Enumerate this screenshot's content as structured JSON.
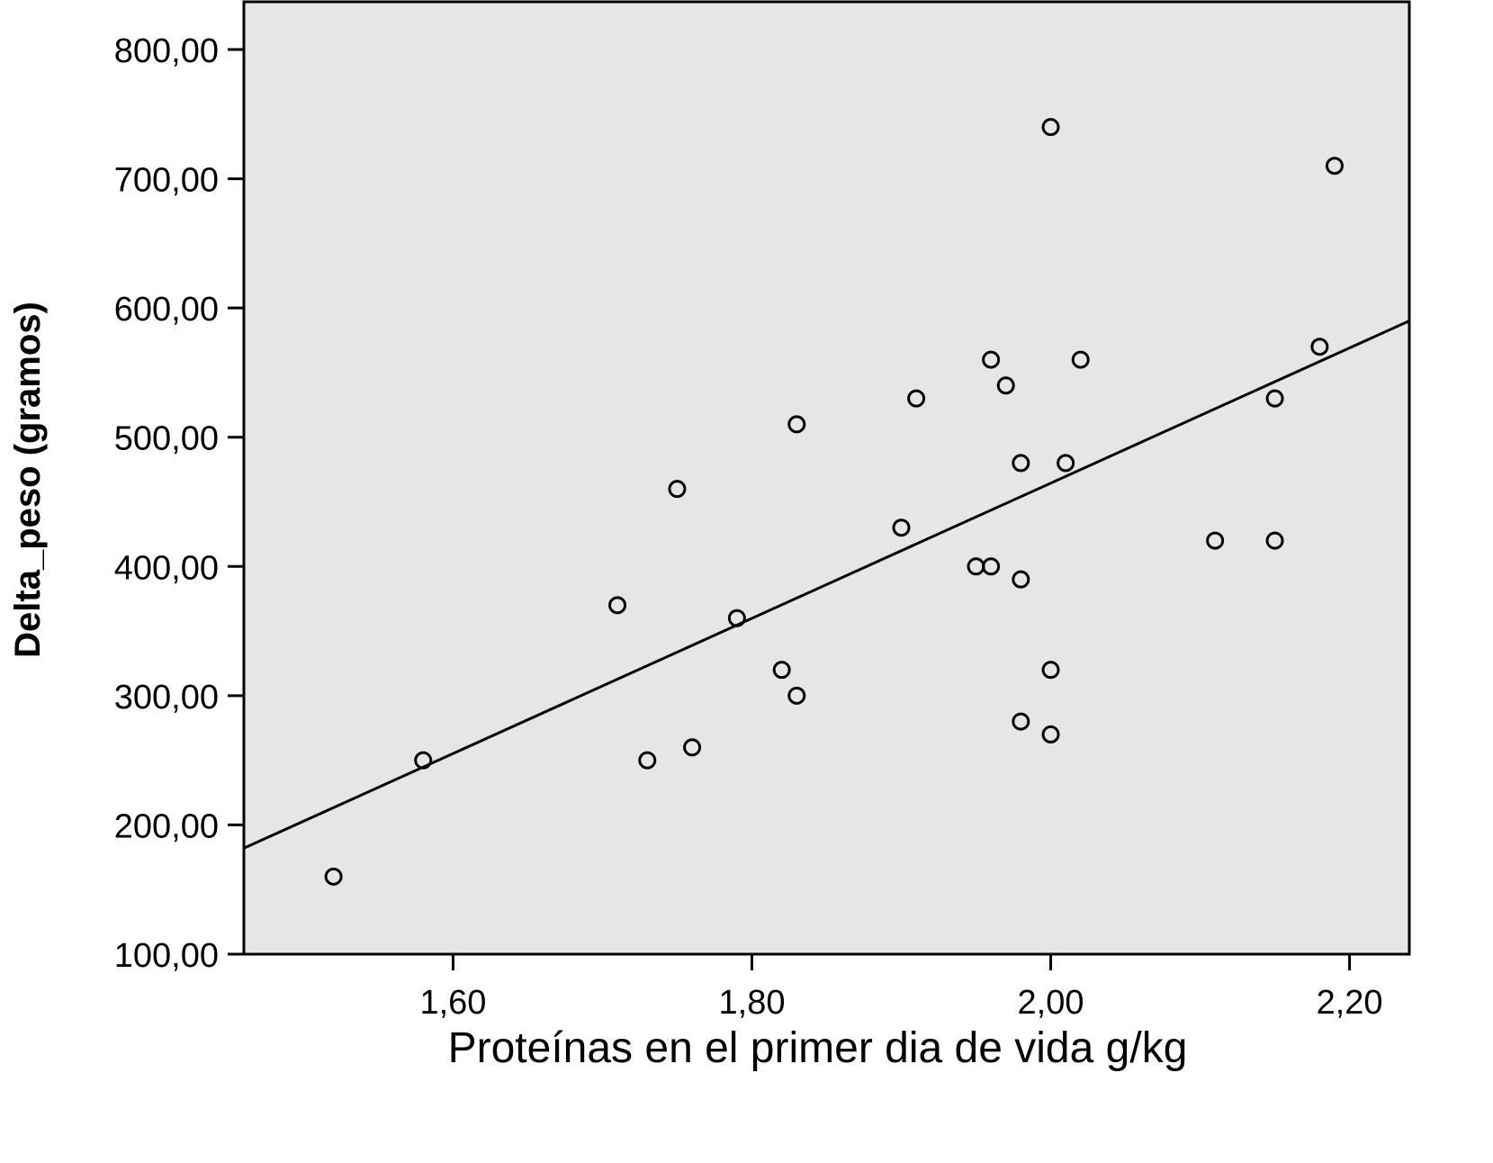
{
  "chart_data": {
    "type": "scatter",
    "title": "",
    "xlabel": "Proteínas en el primer dia de vida g/kg",
    "ylabel": "Delta_peso (gramos)",
    "xlim": [
      1.46,
      2.24
    ],
    "ylim": [
      100,
      800
    ],
    "x_ticks": [
      1.6,
      1.8,
      2.0,
      2.2
    ],
    "x_tick_labels": [
      "1,60",
      "1,80",
      "2,00",
      "2,20"
    ],
    "y_ticks": [
      100,
      200,
      300,
      400,
      500,
      600,
      700,
      800
    ],
    "y_tick_labels": [
      "100,00",
      "200,00",
      "300,00",
      "400,00",
      "500,00",
      "600,00",
      "700,00",
      "800,00"
    ],
    "grid": false,
    "plot_background": "#e6e6e6",
    "marker_color": "#000000",
    "points": [
      {
        "x": 1.52,
        "y": 160
      },
      {
        "x": 1.58,
        "y": 250
      },
      {
        "x": 1.71,
        "y": 370
      },
      {
        "x": 1.73,
        "y": 250
      },
      {
        "x": 1.75,
        "y": 460
      },
      {
        "x": 1.76,
        "y": 260
      },
      {
        "x": 1.79,
        "y": 360
      },
      {
        "x": 1.82,
        "y": 320
      },
      {
        "x": 1.83,
        "y": 510
      },
      {
        "x": 1.83,
        "y": 300
      },
      {
        "x": 1.9,
        "y": 430
      },
      {
        "x": 1.91,
        "y": 530
      },
      {
        "x": 1.95,
        "y": 400
      },
      {
        "x": 1.96,
        "y": 400
      },
      {
        "x": 1.96,
        "y": 560
      },
      {
        "x": 1.97,
        "y": 540
      },
      {
        "x": 1.98,
        "y": 480
      },
      {
        "x": 1.98,
        "y": 390
      },
      {
        "x": 1.98,
        "y": 280
      },
      {
        "x": 2.0,
        "y": 740
      },
      {
        "x": 2.0,
        "y": 320
      },
      {
        "x": 2.0,
        "y": 270
      },
      {
        "x": 2.01,
        "y": 480
      },
      {
        "x": 2.02,
        "y": 560
      },
      {
        "x": 2.11,
        "y": 420
      },
      {
        "x": 2.15,
        "y": 530
      },
      {
        "x": 2.15,
        "y": 420
      },
      {
        "x": 2.18,
        "y": 570
      },
      {
        "x": 2.19,
        "y": 710
      }
    ],
    "fit_line": {
      "x": [
        1.46,
        2.24
      ],
      "y": [
        182,
        590
      ]
    }
  }
}
